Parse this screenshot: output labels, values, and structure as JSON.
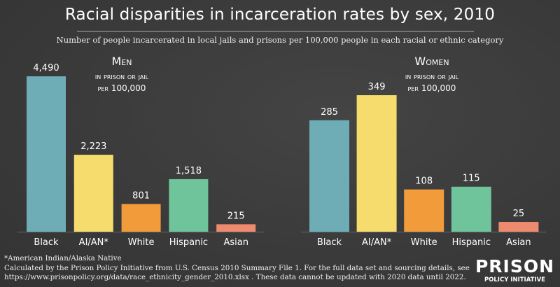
{
  "title": "Racial disparities in incarceration rates by sex, 2010",
  "subtitle": "Number of people incarcerated in local jails and prisons per 100,000 people in each racial or ethnic category",
  "footnote": "*American Indian/Alaska Native",
  "source_line1": "Calculated by the Prison Policy Initiative from U.S. Census 2010 Summary File 1. For the full data set and sourcing details, see",
  "source_line2": "https://www.prisonpolicy.org/data/race_ethnicity_gender_2010.xlsx . These data cannot be updated with 2020 data until 2022.",
  "logo": {
    "top": "PRISON",
    "bottom": "POLICY INITIATIVE"
  },
  "chart_data": [
    {
      "type": "bar",
      "title": "Men",
      "subtitle1": "in prison or jail",
      "subtitle2_per": "per",
      "subtitle2_num": "100,000",
      "categories": [
        "Black",
        "AI/AN*",
        "White",
        "Hispanic",
        "Asian"
      ],
      "values": [
        4490,
        2223,
        801,
        1518,
        215
      ],
      "labels": [
        "4,490",
        "2,223",
        "801",
        "1,518",
        "215"
      ],
      "colors": [
        "#6fadb6",
        "#f6dc6c",
        "#f19b3a",
        "#6fc49b",
        "#ee8a6e"
      ]
    },
    {
      "type": "bar",
      "title": "Women",
      "subtitle1": "in prison or jail",
      "subtitle2_per": "per",
      "subtitle2_num": "100,000",
      "categories": [
        "Black",
        "AI/AN*",
        "White",
        "Hispanic",
        "Asian"
      ],
      "values": [
        285,
        349,
        108,
        115,
        25
      ],
      "labels": [
        "285",
        "349",
        "108",
        "115",
        "25"
      ],
      "colors": [
        "#6fadb6",
        "#f6dc6c",
        "#f19b3a",
        "#6fc49b",
        "#ee8a6e"
      ]
    }
  ]
}
